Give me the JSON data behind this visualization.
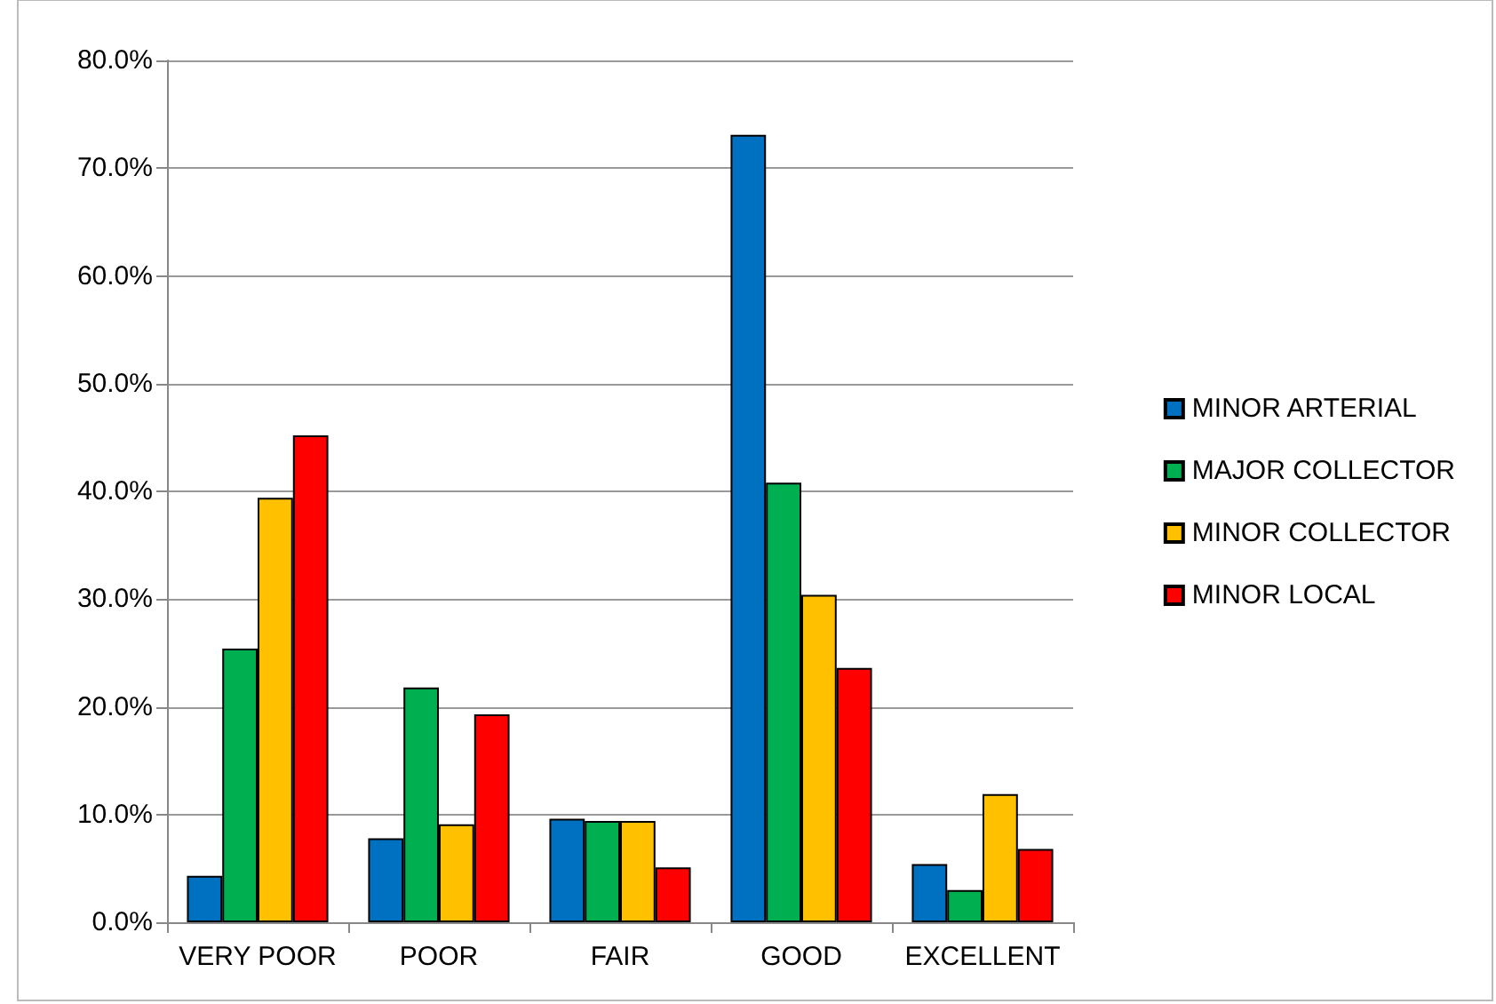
{
  "chart_data": {
    "type": "bar",
    "categories": [
      "VERY POOR",
      "POOR",
      "FAIR",
      "GOOD",
      "EXCELLENT"
    ],
    "series": [
      {
        "name": "MINOR ARTERIAL",
        "color": "#0070c0",
        "values": [
          4.3,
          7.8,
          9.6,
          73.1,
          5.4
        ]
      },
      {
        "name": "MAJOR COLLECTOR",
        "color": "#00b050",
        "values": [
          25.4,
          21.8,
          9.4,
          40.8,
          3.0
        ]
      },
      {
        "name": "MINOR COLLECTOR",
        "color": "#ffc000",
        "values": [
          39.4,
          9.1,
          9.4,
          30.4,
          11.9
        ]
      },
      {
        "name": "MINOR LOCAL",
        "color": "#ff0000",
        "values": [
          45.2,
          19.3,
          5.1,
          23.6,
          6.8
        ]
      }
    ],
    "ylim": [
      0,
      80
    ],
    "yticks": [
      {
        "value": 0,
        "label": "0.0%"
      },
      {
        "value": 10,
        "label": "10.0%"
      },
      {
        "value": 20,
        "label": "20.0%"
      },
      {
        "value": 30,
        "label": "30.0%"
      },
      {
        "value": 40,
        "label": "40.0%"
      },
      {
        "value": 50,
        "label": "50.0%"
      },
      {
        "value": 60,
        "label": "60.0%"
      },
      {
        "value": 70,
        "label": "70.0%"
      },
      {
        "value": 80,
        "label": "80.0%"
      }
    ],
    "grid": "y",
    "legend": "right"
  }
}
